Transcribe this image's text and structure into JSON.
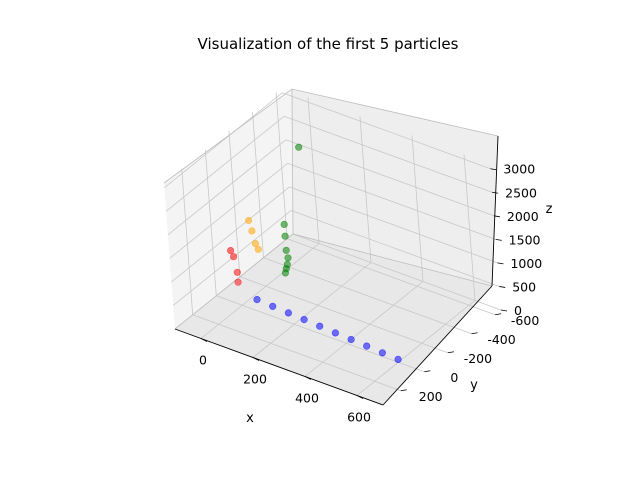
{
  "chart_data": {
    "type": "scatter",
    "title": "Visualization of the first 5 particles",
    "xlabel": "x",
    "ylabel": "y",
    "zlabel": "z",
    "xlim": [
      -100,
      700
    ],
    "ylim": [
      -650,
      350
    ],
    "zlim": [
      0,
      3100
    ],
    "x_ticks": [
      0,
      200,
      400,
      600
    ],
    "y_ticks": [
      -600,
      -400,
      -200,
      0,
      200
    ],
    "z_ticks": [
      0,
      500,
      1000,
      1500,
      2000,
      2500,
      3000
    ],
    "grid": true,
    "series": [
      {
        "color": "#0000ff",
        "points": [
          [
            60,
            0,
            240
          ],
          [
            120,
            0,
            220
          ],
          [
            180,
            0,
            200
          ],
          [
            240,
            0,
            180
          ],
          [
            300,
            0,
            160
          ],
          [
            360,
            0,
            140
          ],
          [
            420,
            0,
            120
          ],
          [
            480,
            0,
            100
          ],
          [
            540,
            0,
            80
          ],
          [
            600,
            0,
            60
          ]
        ]
      },
      {
        "color": "#ff0000",
        "points": [
          [
            -30,
            0,
            1100
          ],
          [
            -10,
            20,
            1050
          ],
          [
            10,
            40,
            800
          ],
          [
            20,
            60,
            650
          ]
        ]
      },
      {
        "color": "#ffa500",
        "points": [
          [
            50,
            0,
            1900
          ],
          [
            60,
            0,
            1700
          ],
          [
            70,
            0,
            1450
          ],
          [
            80,
            0,
            1350
          ]
        ]
      },
      {
        "color": "#008000",
        "points": [
          [
            270,
            0,
            3900
          ],
          [
            190,
            0,
            2100
          ],
          [
            190,
            0,
            1850
          ],
          [
            190,
            0,
            1550
          ],
          [
            195,
            0,
            1400
          ],
          [
            190,
            0,
            1250
          ],
          [
            185,
            0,
            1150
          ],
          [
            180,
            0,
            1050
          ]
        ]
      }
    ]
  }
}
